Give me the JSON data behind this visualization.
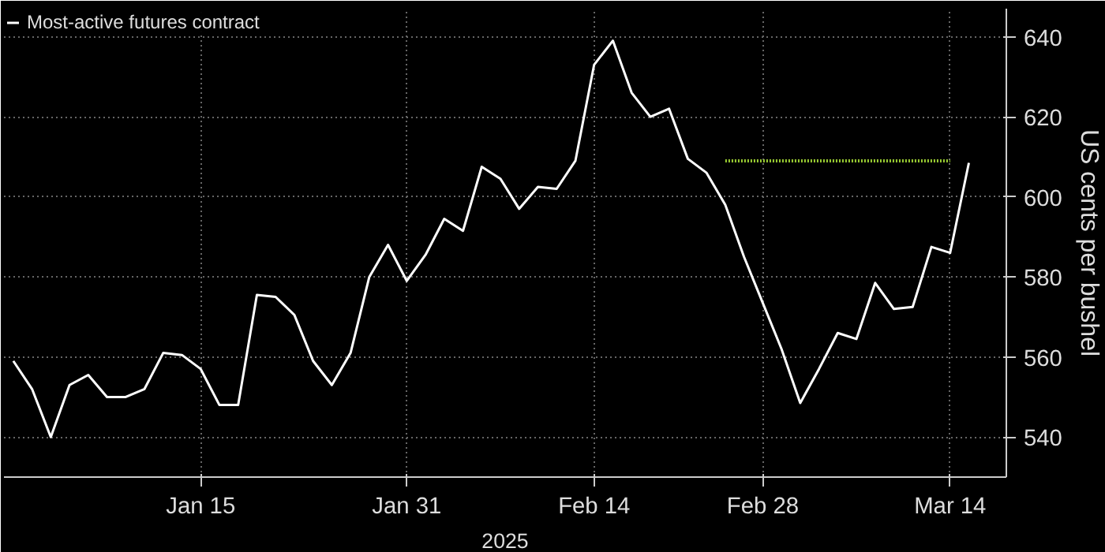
{
  "chart_data": {
    "type": "line",
    "categories": [
      null,
      null,
      null,
      null,
      null,
      null,
      null,
      null,
      null,
      null,
      "Jan 15",
      null,
      null,
      null,
      null,
      null,
      null,
      null,
      null,
      null,
      null,
      "Jan 31",
      null,
      null,
      null,
      null,
      null,
      null,
      null,
      null,
      null,
      "Feb 14",
      null,
      null,
      null,
      null,
      null,
      null,
      null,
      null,
      "Feb 28",
      null,
      null,
      null,
      null,
      null,
      null,
      null,
      null,
      null,
      "Mar 14",
      null
    ],
    "series": [
      {
        "name": "Most-active futures contract",
        "color": "#ffffff",
        "values": [
          559,
          552,
          540,
          553,
          555.5,
          550,
          550,
          552,
          561,
          560.5,
          557,
          548,
          548,
          575.5,
          575,
          570.5,
          559,
          553,
          561,
          580,
          588,
          579,
          585.5,
          594.5,
          591.5,
          607.5,
          604.5,
          597,
          602.5,
          602,
          609,
          633,
          639,
          626,
          620,
          622,
          609.5,
          606,
          598,
          585,
          573.5,
          562,
          548.5,
          557,
          566,
          564.5,
          578.5,
          572,
          572.5,
          587.5,
          586,
          608.5
        ]
      },
      {
        "color": "#9acd32",
        "line_style": "dotted",
        "values": [
          null,
          null,
          null,
          null,
          null,
          null,
          null,
          null,
          null,
          null,
          null,
          null,
          null,
          null,
          null,
          null,
          null,
          null,
          null,
          null,
          null,
          null,
          null,
          null,
          null,
          null,
          null,
          null,
          null,
          null,
          null,
          null,
          null,
          null,
          null,
          null,
          null,
          null,
          609,
          609,
          609,
          609,
          609,
          609,
          609,
          609,
          609,
          609,
          609,
          609,
          609,
          null
        ]
      }
    ],
    "xlabel": "2025",
    "ylabel": "US cents per bushel",
    "ylim": [
      530,
      647
    ],
    "yticks": [
      540,
      560,
      580,
      600,
      620,
      640
    ],
    "grid": true,
    "legend": "top left",
    "marker": "none",
    "line_style": "solid"
  }
}
